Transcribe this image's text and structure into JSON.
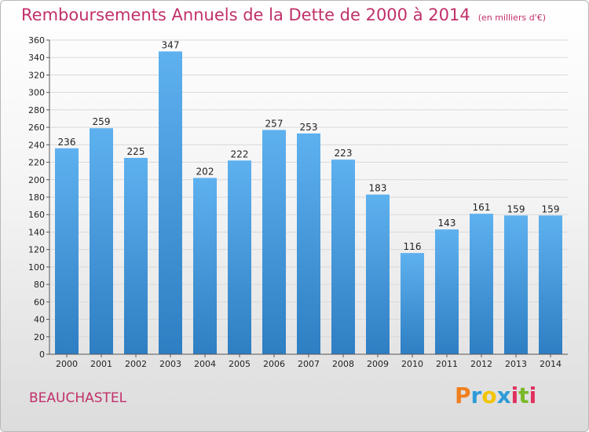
{
  "header": {
    "title": "Remboursements Annuels de la Dette de 2000 à 2014",
    "subtitle": "(en milliers d'€)"
  },
  "footer": {
    "place": "BEAUCHASTEL",
    "brand": "Proxiti",
    "brand_colors": [
      "#f07f1d",
      "#2f9bd8",
      "#f2c500",
      "#2f9bd8",
      "#e0305f",
      "#78b928",
      "#e0305f"
    ]
  },
  "colors": {
    "bar_top": "#5eb1ef",
    "bar_bottom": "#2e7ec3",
    "title": "#c0306a",
    "grid": "#d9d9d9"
  },
  "chart_data": {
    "type": "bar",
    "title": "Remboursements Annuels de la Dette de 2000 à 2014",
    "subtitle": "(en milliers d'€)",
    "categories": [
      "2000",
      "2001",
      "2002",
      "2003",
      "2004",
      "2005",
      "2006",
      "2007",
      "2008",
      "2009",
      "2010",
      "2011",
      "2012",
      "2013",
      "2014"
    ],
    "values": [
      236,
      259,
      225,
      347,
      202,
      222,
      257,
      253,
      223,
      183,
      116,
      143,
      161,
      159,
      159
    ],
    "ylim": [
      0,
      360
    ],
    "ytick_step": 20,
    "grid": true,
    "xlabel": "",
    "ylabel": ""
  }
}
